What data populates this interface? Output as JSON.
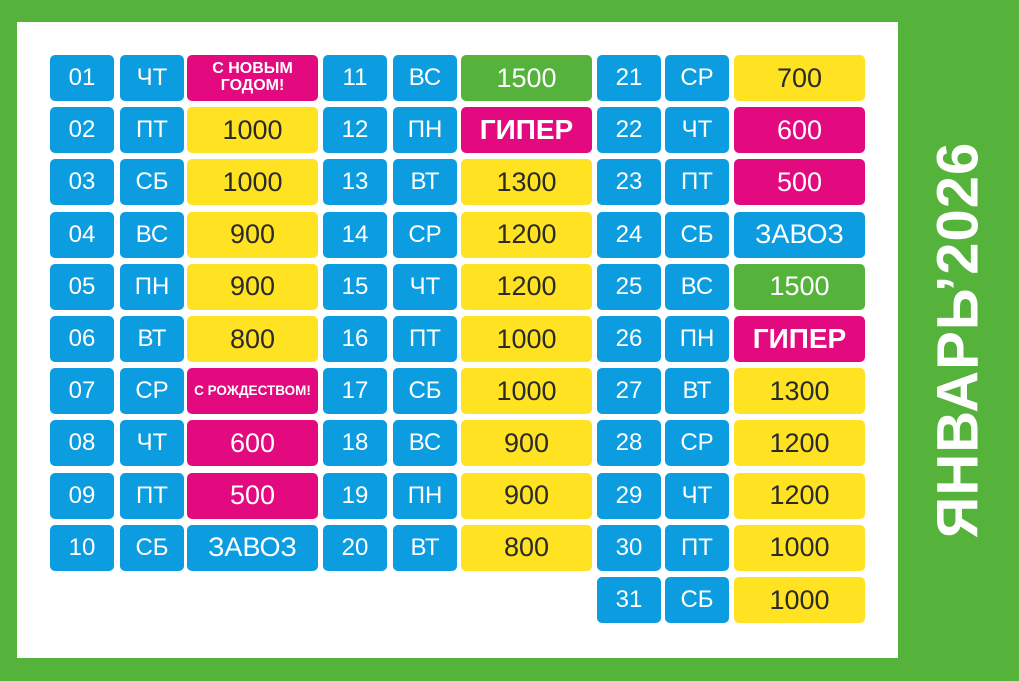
{
  "title": "ЯНВАРЬ’2026",
  "colors": {
    "background_green": "#55b33b",
    "panel": "#ffffff",
    "blue": "#0b9de0",
    "yellow": "#ffe221",
    "pink": "#e3097f",
    "green": "#55b33b"
  },
  "columns": [
    {
      "rows": [
        {
          "day": "01",
          "dow": "ЧТ",
          "value": "С НОВЫМ ГОДОМ!",
          "style": "pink-small"
        },
        {
          "day": "02",
          "dow": "ПТ",
          "value": "1000",
          "style": "yellow"
        },
        {
          "day": "03",
          "dow": "СБ",
          "value": "1000",
          "style": "yellow"
        },
        {
          "day": "04",
          "dow": "ВС",
          "value": "900",
          "style": "yellow"
        },
        {
          "day": "05",
          "dow": "ПН",
          "value": "900",
          "style": "yellow"
        },
        {
          "day": "06",
          "dow": "ВТ",
          "value": "800",
          "style": "yellow"
        },
        {
          "day": "07",
          "dow": "СР",
          "value": "С РОЖДЕСТВОМ!",
          "style": "pink-tiny"
        },
        {
          "day": "08",
          "dow": "ЧТ",
          "value": "600",
          "style": "pink"
        },
        {
          "day": "09",
          "dow": "ПТ",
          "value": "500",
          "style": "pink"
        },
        {
          "day": "10",
          "dow": "СБ",
          "value": "ЗАВОЗ",
          "style": "blue"
        }
      ]
    },
    {
      "rows": [
        {
          "day": "11",
          "dow": "ВС",
          "value": "1500",
          "style": "green"
        },
        {
          "day": "12",
          "dow": "ПН",
          "value": "ГИПЕР",
          "style": "pink-bold"
        },
        {
          "day": "13",
          "dow": "ВТ",
          "value": "1300",
          "style": "yellow"
        },
        {
          "day": "14",
          "dow": "СР",
          "value": "1200",
          "style": "yellow"
        },
        {
          "day": "15",
          "dow": "ЧТ",
          "value": "1200",
          "style": "yellow"
        },
        {
          "day": "16",
          "dow": "ПТ",
          "value": "1000",
          "style": "yellow"
        },
        {
          "day": "17",
          "dow": "СБ",
          "value": "1000",
          "style": "yellow"
        },
        {
          "day": "18",
          "dow": "ВС",
          "value": "900",
          "style": "yellow"
        },
        {
          "day": "19",
          "dow": "ПН",
          "value": "900",
          "style": "yellow"
        },
        {
          "day": "20",
          "dow": "ВТ",
          "value": "800",
          "style": "yellow"
        }
      ]
    },
    {
      "rows": [
        {
          "day": "21",
          "dow": "СР",
          "value": "700",
          "style": "yellow"
        },
        {
          "day": "22",
          "dow": "ЧТ",
          "value": "600",
          "style": "pink"
        },
        {
          "day": "23",
          "dow": "ПТ",
          "value": "500",
          "style": "pink"
        },
        {
          "day": "24",
          "dow": "СБ",
          "value": "ЗАВОЗ",
          "style": "blue"
        },
        {
          "day": "25",
          "dow": "ВС",
          "value": "1500",
          "style": "green"
        },
        {
          "day": "26",
          "dow": "ПН",
          "value": "ГИПЕР",
          "style": "pink-bold"
        },
        {
          "day": "27",
          "dow": "ВТ",
          "value": "1300",
          "style": "yellow"
        },
        {
          "day": "28",
          "dow": "СР",
          "value": "1200",
          "style": "yellow"
        },
        {
          "day": "29",
          "dow": "ЧТ",
          "value": "1200",
          "style": "yellow"
        },
        {
          "day": "30",
          "dow": "ПТ",
          "value": "1000",
          "style": "yellow"
        },
        {
          "day": "31",
          "dow": "СБ",
          "value": "1000",
          "style": "yellow"
        }
      ]
    }
  ]
}
